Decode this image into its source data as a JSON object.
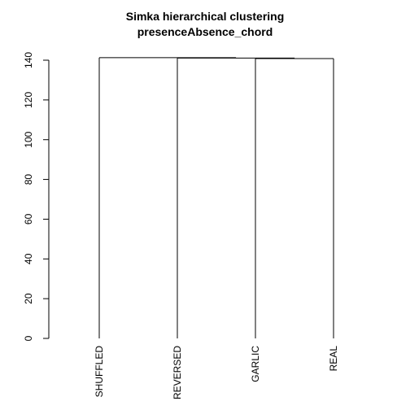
{
  "chart_data": {
    "type": "dendrogram",
    "title_lines": [
      "Simka hierarchical clustering",
      "presenceAbsence_chord"
    ],
    "leaves": [
      "SHUFFLED",
      "REVERSED",
      "GARLIC",
      "REAL"
    ],
    "merges": [
      {
        "left": "GARLIC",
        "right": "REAL",
        "height": 140.8
      },
      {
        "left": "REVERSED",
        "right": "GARLIC+REAL",
        "height": 141.1
      },
      {
        "left": "SHUFFLED",
        "right": "REVERSED+GARLIC+REAL",
        "height": 141.3
      }
    ],
    "y_ticks": [
      "0",
      "20",
      "40",
      "60",
      "80",
      "100",
      "120",
      "140"
    ],
    "ylim": [
      0,
      140
    ],
    "ylabel": "",
    "xlabel": "",
    "grid": false,
    "legend": "none"
  }
}
